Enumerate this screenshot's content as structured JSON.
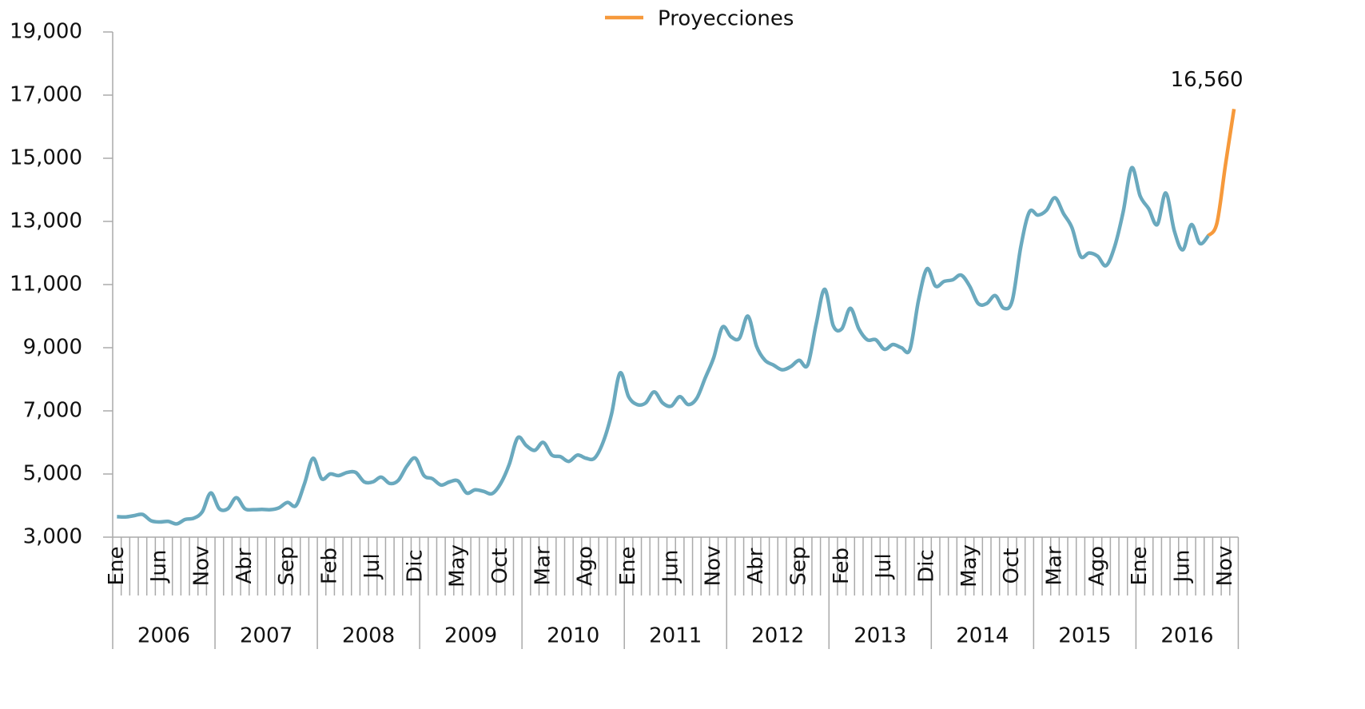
{
  "chart_data": {
    "type": "line",
    "categories": [
      "Ene",
      null,
      null,
      null,
      null,
      "Jun",
      null,
      null,
      null,
      null,
      "Nov",
      null,
      null,
      null,
      null,
      "Abr",
      null,
      null,
      null,
      null,
      "Sep",
      null,
      null,
      null,
      null,
      "Feb",
      null,
      null,
      null,
      null,
      "Jul",
      null,
      null,
      null,
      null,
      "Dic",
      null,
      null,
      null,
      null,
      "May",
      null,
      null,
      null,
      null,
      "Oct",
      null,
      null,
      null,
      null,
      "Mar",
      null,
      null,
      null,
      null,
      "Ago",
      null,
      null,
      null,
      null,
      "Ene",
      null,
      null,
      null,
      null,
      "Jun",
      null,
      null,
      null,
      null,
      "Nov",
      null,
      null,
      null,
      null,
      "Abr",
      null,
      null,
      null,
      null,
      "Sep",
      null,
      null,
      null,
      null,
      "Feb",
      null,
      null,
      null,
      null,
      "Jul",
      null,
      null,
      null,
      null,
      "Dic",
      null,
      null,
      null,
      null,
      "May",
      null,
      null,
      null,
      null,
      "Oct",
      null,
      null,
      null,
      null,
      "Mar",
      null,
      null,
      null,
      null,
      "Ago",
      null,
      null,
      null,
      null,
      "Ene",
      null,
      null,
      null,
      null,
      "Jun",
      null,
      null,
      null,
      null,
      "Nov",
      null
    ],
    "year_labels": [
      "2006",
      "2007",
      "2008",
      "2009",
      "2010",
      "2011",
      "2012",
      "2013",
      "2014",
      "2015",
      "2016"
    ],
    "series": [
      {
        "color": "#6aa9be",
        "values": [
          3650,
          3640,
          3680,
          3720,
          3520,
          3480,
          3500,
          3420,
          3560,
          3600,
          3800,
          4400,
          3900,
          3900,
          4250,
          3900,
          3870,
          3880,
          3870,
          3930,
          4100,
          4000,
          4700,
          5500,
          4850,
          5000,
          4950,
          5050,
          5050,
          4750,
          4750,
          4900,
          4700,
          4800,
          5250,
          5500,
          4950,
          4850,
          4650,
          4750,
          4780,
          4400,
          4500,
          4450,
          4380,
          4700,
          5300,
          6150,
          5900,
          5750,
          6000,
          5600,
          5550,
          5400,
          5600,
          5500,
          5500,
          6000,
          6900,
          8200,
          7450,
          7200,
          7250,
          7600,
          7250,
          7150,
          7450,
          7200,
          7400,
          8050,
          8700,
          9650,
          9350,
          9300,
          10000,
          9050,
          8600,
          8450,
          8300,
          8400,
          8600,
          8450,
          9750,
          10850,
          9700,
          9600,
          10250,
          9600,
          9250,
          9250,
          8950,
          9100,
          9000,
          8950,
          10500,
          11500,
          10950,
          11100,
          11150,
          11300,
          10950,
          10400,
          10400,
          10650,
          10250,
          10500,
          12200,
          13300,
          13200,
          13350,
          13750,
          13250,
          12800,
          11900,
          12000,
          11900,
          11600,
          12200,
          13300,
          14700,
          13800,
          13400,
          12900,
          13900,
          12700,
          12100,
          12900,
          12300,
          12550,
          null,
          null,
          null
        ]
      },
      {
        "name": "Proyecciones",
        "color": "#f6993b",
        "values": [
          null,
          null,
          null,
          null,
          null,
          null,
          null,
          null,
          null,
          null,
          null,
          null,
          null,
          null,
          null,
          null,
          null,
          null,
          null,
          null,
          null,
          null,
          null,
          null,
          null,
          null,
          null,
          null,
          null,
          null,
          null,
          null,
          null,
          null,
          null,
          null,
          null,
          null,
          null,
          null,
          null,
          null,
          null,
          null,
          null,
          null,
          null,
          null,
          null,
          null,
          null,
          null,
          null,
          null,
          null,
          null,
          null,
          null,
          null,
          null,
          null,
          null,
          null,
          null,
          null,
          null,
          null,
          null,
          null,
          null,
          null,
          null,
          null,
          null,
          null,
          null,
          null,
          null,
          null,
          null,
          null,
          null,
          null,
          null,
          null,
          null,
          null,
          null,
          null,
          null,
          null,
          null,
          null,
          null,
          null,
          null,
          null,
          null,
          null,
          null,
          null,
          null,
          null,
          null,
          null,
          null,
          null,
          null,
          null,
          null,
          null,
          null,
          null,
          null,
          null,
          null,
          null,
          null,
          null,
          null,
          null,
          null,
          null,
          null,
          null,
          null,
          null,
          null,
          12550,
          12950,
          14800,
          16560
        ],
        "value_labels": [
          null,
          null,
          null,
          null,
          null,
          null,
          null,
          null,
          null,
          null,
          null,
          null,
          null,
          null,
          null,
          null,
          null,
          null,
          null,
          null,
          null,
          null,
          null,
          null,
          null,
          null,
          null,
          null,
          null,
          null,
          null,
          null,
          null,
          null,
          null,
          null,
          null,
          null,
          null,
          null,
          null,
          null,
          null,
          null,
          null,
          null,
          null,
          null,
          null,
          null,
          null,
          null,
          null,
          null,
          null,
          null,
          null,
          null,
          null,
          null,
          null,
          null,
          null,
          null,
          null,
          null,
          null,
          null,
          null,
          null,
          null,
          null,
          null,
          null,
          null,
          null,
          null,
          null,
          null,
          null,
          null,
          null,
          null,
          null,
          null,
          null,
          null,
          null,
          null,
          null,
          null,
          null,
          null,
          null,
          null,
          null,
          null,
          null,
          null,
          null,
          null,
          null,
          null,
          null,
          null,
          null,
          null,
          null,
          null,
          null,
          null,
          null,
          null,
          null,
          null,
          null,
          null,
          null,
          null,
          null,
          null,
          null,
          null,
          null,
          null,
          null,
          null,
          null,
          null,
          null,
          null,
          "16,560"
        ]
      }
    ],
    "ylim": [
      3000,
      19000
    ],
    "yticks": [
      {
        "value": 3000,
        "label": "3,000"
      },
      {
        "value": 5000,
        "label": "5,000"
      },
      {
        "value": 7000,
        "label": "7,000"
      },
      {
        "value": 9000,
        "label": "9,000"
      },
      {
        "value": 11000,
        "label": "11,000"
      },
      {
        "value": 13000,
        "label": "13,000"
      },
      {
        "value": 15000,
        "label": "15,000"
      },
      {
        "value": 17000,
        "label": "17,000"
      },
      {
        "value": 19000,
        "label": "19,000"
      }
    ],
    "grid": false,
    "legend": "top"
  }
}
